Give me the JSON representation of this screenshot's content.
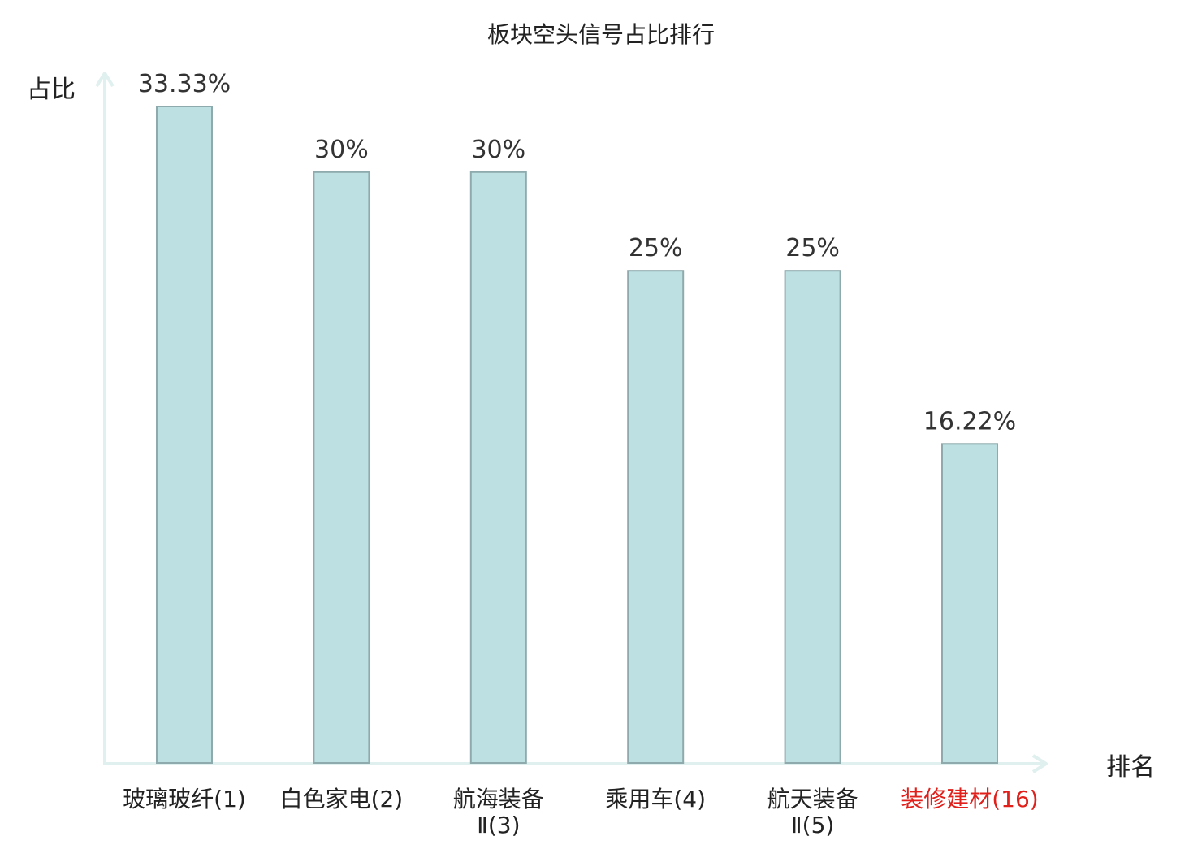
{
  "chart_data": {
    "type": "bar",
    "title": "板块空头信号占比排行",
    "ylabel": "占比",
    "xlabel": "排名",
    "categories": [
      {
        "name": "玻璃玻纤",
        "rank": "(1)",
        "lines": [
          "玻璃玻纤(1)"
        ],
        "highlight": false
      },
      {
        "name": "白色家电",
        "rank": "(2)",
        "lines": [
          "白色家电(2)"
        ],
        "highlight": false
      },
      {
        "name": "航海装备Ⅱ",
        "rank": "(3)",
        "lines": [
          "航海装备",
          "Ⅱ(3)"
        ],
        "highlight": false
      },
      {
        "name": "乘用车",
        "rank": "(4)",
        "lines": [
          "乘用车(4)"
        ],
        "highlight": false
      },
      {
        "name": "航天装备Ⅱ",
        "rank": "(5)",
        "lines": [
          "航天装备",
          "Ⅱ(5)"
        ],
        "highlight": false
      },
      {
        "name": "装修建材",
        "rank": "(16)",
        "lines": [
          "装修建材(16)"
        ],
        "highlight": true
      }
    ],
    "values": [
      33.33,
      30,
      30,
      25,
      25,
      16.22
    ],
    "value_labels": [
      "33.33%",
      "30%",
      "30%",
      "25%",
      "25%",
      "16.22%"
    ],
    "ylim": [
      0,
      33.33
    ],
    "grid": false,
    "legend": "none",
    "colors": {
      "bar_fill": "#bde0e3",
      "bar_stroke": "#8eaaad",
      "axis": "#dff0ee",
      "highlight_label": "#e0201b"
    }
  }
}
